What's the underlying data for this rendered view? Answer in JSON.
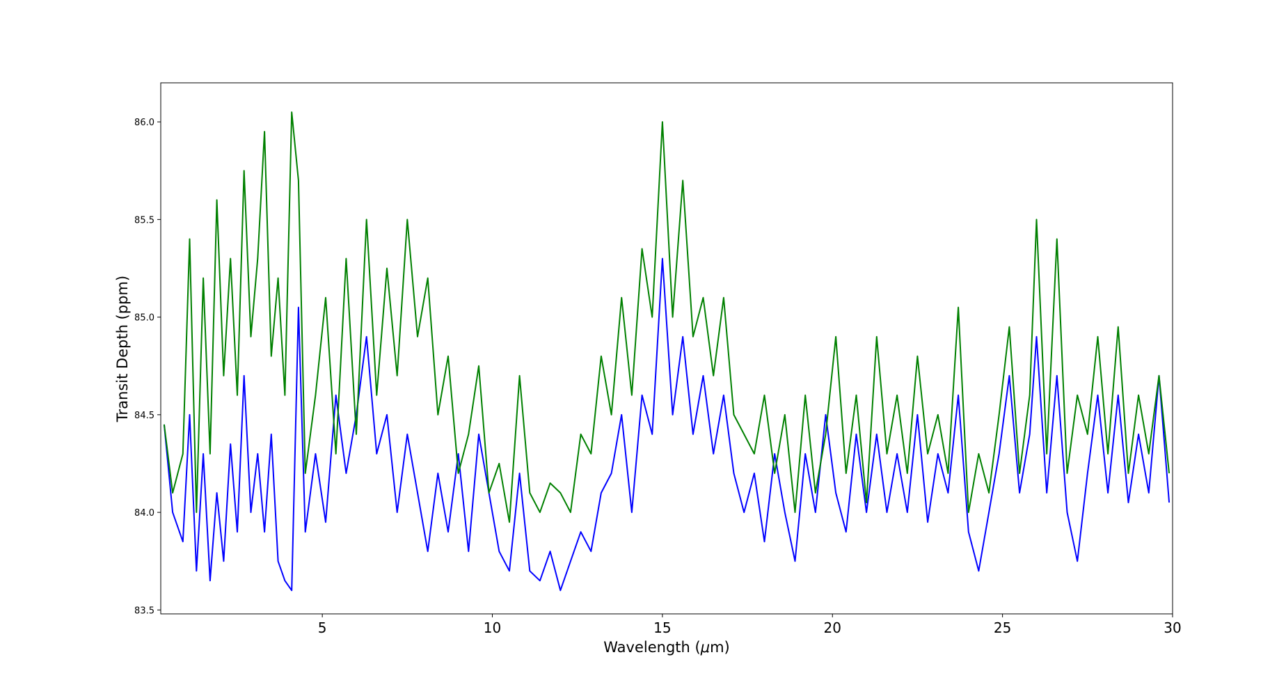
{
  "chart_data": {
    "type": "line",
    "title": "",
    "xlabel": "Wavelength (",
    "xlabel_unit": "μ",
    "xlabel_suffix": "m)",
    "ylabel": "Transit Depth (ppm)",
    "xlim": [
      0.25,
      30
    ],
    "ylim": [
      83.48,
      86.2
    ],
    "x_ticks": [
      5,
      10,
      15,
      20,
      25,
      30
    ],
    "x_tick_labels": [
      "5",
      "10",
      "15",
      "20",
      "25",
      "30"
    ],
    "y_ticks": [
      83.5,
      84.0,
      84.5,
      85.0,
      85.5,
      86.0
    ],
    "y_tick_labels": [
      "83.5",
      "84.0",
      "84.5",
      "85.0",
      "85.5",
      "86.0"
    ],
    "grid": false,
    "legend": "none",
    "series": [
      {
        "color": "#008000",
        "x": [
          0.35,
          0.6,
          0.9,
          1.1,
          1.3,
          1.5,
          1.7,
          1.9,
          2.1,
          2.3,
          2.5,
          2.7,
          2.9,
          3.1,
          3.3,
          3.5,
          3.7,
          3.9,
          4.1,
          4.3,
          4.5,
          4.8,
          5.1,
          5.4,
          5.7,
          6.0,
          6.3,
          6.6,
          6.9,
          7.2,
          7.5,
          7.8,
          8.1,
          8.4,
          8.7,
          9.0,
          9.3,
          9.6,
          9.9,
          10.2,
          10.5,
          10.8,
          11.1,
          11.4,
          11.7,
          12.0,
          12.3,
          12.6,
          12.9,
          13.2,
          13.5,
          13.8,
          14.1,
          14.4,
          14.7,
          15.0,
          15.3,
          15.6,
          15.9,
          16.2,
          16.5,
          16.8,
          17.1,
          17.4,
          17.7,
          18.0,
          18.3,
          18.6,
          18.9,
          19.2,
          19.5,
          19.8,
          20.1,
          20.4,
          20.7,
          21.0,
          21.3,
          21.6,
          21.9,
          22.2,
          22.5,
          22.8,
          23.1,
          23.4,
          23.7,
          24.0,
          24.3,
          24.6,
          24.9,
          25.2,
          25.5,
          25.8,
          26.0,
          26.3,
          26.6,
          26.9,
          27.2,
          27.5,
          27.8,
          28.1,
          28.4,
          28.7,
          29.0,
          29.3,
          29.6,
          29.9
        ],
        "values": [
          84.45,
          84.1,
          84.3,
          85.4,
          84.0,
          85.2,
          84.3,
          85.6,
          84.7,
          85.3,
          84.6,
          85.75,
          84.9,
          85.3,
          85.95,
          84.8,
          85.2,
          84.6,
          86.05,
          85.7,
          84.2,
          84.6,
          85.1,
          84.3,
          85.3,
          84.4,
          85.5,
          84.6,
          85.25,
          84.7,
          85.5,
          84.9,
          85.2,
          84.5,
          84.8,
          84.2,
          84.4,
          84.75,
          84.1,
          84.25,
          83.95,
          84.7,
          84.1,
          84.0,
          84.15,
          84.1,
          84.0,
          84.4,
          84.3,
          84.8,
          84.5,
          85.1,
          84.6,
          85.35,
          85.0,
          86.0,
          85.0,
          85.7,
          84.9,
          85.1,
          84.7,
          85.1,
          84.5,
          84.4,
          84.3,
          84.6,
          84.2,
          84.5,
          84.0,
          84.6,
          84.1,
          84.4,
          84.9,
          84.2,
          84.6,
          84.05,
          84.9,
          84.3,
          84.6,
          84.2,
          84.8,
          84.3,
          84.5,
          84.2,
          85.05,
          84.0,
          84.3,
          84.1,
          84.5,
          84.95,
          84.2,
          84.6,
          85.5,
          84.3,
          85.4,
          84.2,
          84.6,
          84.4,
          84.9,
          84.3,
          84.95,
          84.2,
          84.6,
          84.3,
          84.7,
          84.2
        ]
      },
      {
        "color": "#0000ff",
        "x": [
          0.35,
          0.6,
          0.9,
          1.1,
          1.3,
          1.5,
          1.7,
          1.9,
          2.1,
          2.3,
          2.5,
          2.7,
          2.9,
          3.1,
          3.3,
          3.5,
          3.7,
          3.9,
          4.1,
          4.3,
          4.5,
          4.8,
          5.1,
          5.4,
          5.7,
          6.0,
          6.3,
          6.6,
          6.9,
          7.2,
          7.5,
          7.8,
          8.1,
          8.4,
          8.7,
          9.0,
          9.3,
          9.6,
          9.9,
          10.2,
          10.5,
          10.8,
          11.1,
          11.4,
          11.7,
          12.0,
          12.3,
          12.6,
          12.9,
          13.2,
          13.5,
          13.8,
          14.1,
          14.4,
          14.7,
          15.0,
          15.3,
          15.6,
          15.9,
          16.2,
          16.5,
          16.8,
          17.1,
          17.4,
          17.7,
          18.0,
          18.3,
          18.6,
          18.9,
          19.2,
          19.5,
          19.8,
          20.1,
          20.4,
          20.7,
          21.0,
          21.3,
          21.6,
          21.9,
          22.2,
          22.5,
          22.8,
          23.1,
          23.4,
          23.7,
          24.0,
          24.3,
          24.6,
          24.9,
          25.2,
          25.5,
          25.8,
          26.0,
          26.3,
          26.6,
          26.9,
          27.2,
          27.5,
          27.8,
          28.1,
          28.4,
          28.7,
          29.0,
          29.3,
          29.6,
          29.9
        ],
        "values": [
          84.45,
          84.0,
          83.85,
          84.5,
          83.7,
          84.3,
          83.65,
          84.1,
          83.75,
          84.35,
          83.9,
          84.7,
          84.0,
          84.3,
          83.9,
          84.4,
          83.75,
          83.65,
          83.6,
          85.05,
          83.9,
          84.3,
          83.95,
          84.6,
          84.2,
          84.5,
          84.9,
          84.3,
          84.5,
          84.0,
          84.4,
          84.1,
          83.8,
          84.2,
          83.9,
          84.3,
          83.8,
          84.4,
          84.1,
          83.8,
          83.7,
          84.2,
          83.7,
          83.65,
          83.8,
          83.6,
          83.75,
          83.9,
          83.8,
          84.1,
          84.2,
          84.5,
          84.0,
          84.6,
          84.4,
          85.3,
          84.5,
          84.9,
          84.4,
          84.7,
          84.3,
          84.6,
          84.2,
          84.0,
          84.2,
          83.85,
          84.3,
          84.0,
          83.75,
          84.3,
          84.0,
          84.5,
          84.1,
          83.9,
          84.4,
          84.0,
          84.4,
          84.0,
          84.3,
          84.0,
          84.5,
          83.95,
          84.3,
          84.1,
          84.6,
          83.9,
          83.7,
          84.0,
          84.3,
          84.7,
          84.1,
          84.4,
          84.9,
          84.1,
          84.7,
          84.0,
          83.75,
          84.2,
          84.6,
          84.1,
          84.6,
          84.05,
          84.4,
          84.1,
          84.7,
          84.05
        ]
      }
    ]
  }
}
